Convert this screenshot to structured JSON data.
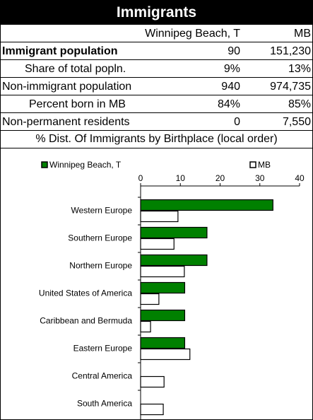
{
  "table": {
    "title": "Immigrants",
    "header": [
      "Winnipeg Beach, T",
      "MB"
    ],
    "rows": [
      [
        "Immigrant population",
        "90",
        "151,230"
      ],
      [
        "Share of total popln.",
        "9%",
        "13%"
      ],
      [
        "Non-immigrant population",
        "940",
        "974,735"
      ],
      [
        "Percent born in MB",
        "84%",
        "85%"
      ],
      [
        "Non-permanent residents",
        "0",
        "7,550"
      ]
    ],
    "caption": "% Dist. Of Immigrants by Birthplace (local order)"
  },
  "chart_data": {
    "type": "bar",
    "orientation": "horizontal",
    "categories": [
      "Western Europe",
      "Southern Europe",
      "Northern Europe",
      "United States of America",
      "Caribbean and Bermuda",
      "Eastern Europe",
      "Central America",
      "South America"
    ],
    "series": [
      {
        "name": "Winnipeg Beach, T",
        "color": "#008000",
        "values": [
          33.3,
          16.7,
          16.7,
          11.1,
          11.1,
          11.1,
          0,
          0
        ]
      },
      {
        "name": "MB",
        "color": "#ffffff",
        "values": [
          9.4,
          8.4,
          11.0,
          4.6,
          2.5,
          12.4,
          5.9,
          5.7
        ]
      }
    ],
    "xlim": [
      0,
      40
    ],
    "xticks": [
      0,
      10,
      20,
      30,
      40
    ]
  }
}
